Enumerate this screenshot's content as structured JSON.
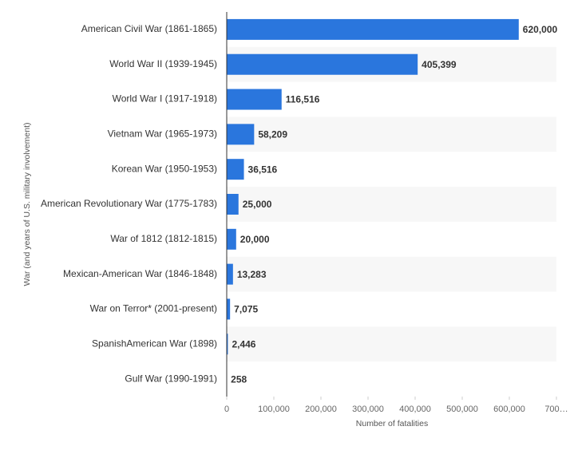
{
  "chart_data": {
    "type": "hbar",
    "y_label": "War (and years of U.S. military involvement)",
    "x_label": "Number of fatalities",
    "categories": [
      "American Civil War (1861-1865)",
      "World War II (1939-1945)",
      "World War I (1917-1918)",
      "Vietnam War (1965-1973)",
      "Korean War (1950-1953)",
      "American Revolutionary War (1775-1783)",
      "War of 1812 (1812-1815)",
      "Mexican-American War (1846-1848)",
      "War on Terror* (2001-present)",
      "SpanishAmerican War (1898)",
      "Gulf War (1990-1991)"
    ],
    "values": [
      620000,
      405399,
      116516,
      58209,
      36516,
      25000,
      20000,
      13283,
      7075,
      2446,
      258
    ],
    "value_labels": [
      "620,000",
      "405,399",
      "116,516",
      "58,209",
      "36,516",
      "25,000",
      "20,000",
      "13,283",
      "7,075",
      "2,446",
      "258"
    ],
    "color": "#2a76dd",
    "xlim": [
      0,
      700000
    ],
    "xticks": [
      0,
      {
        "value": 100000,
        "label": "100,000"
      },
      {
        "value": 200000,
        "label": "200,000"
      },
      {
        "value": 300000,
        "label": "300,000"
      },
      {
        "value": 400000,
        "label": "400,000"
      },
      {
        "value": 500000,
        "label": "500,000"
      },
      {
        "value": 600000,
        "label": "600,000"
      },
      {
        "value": 700000,
        "label": "700…"
      }
    ],
    "striped": true
  }
}
